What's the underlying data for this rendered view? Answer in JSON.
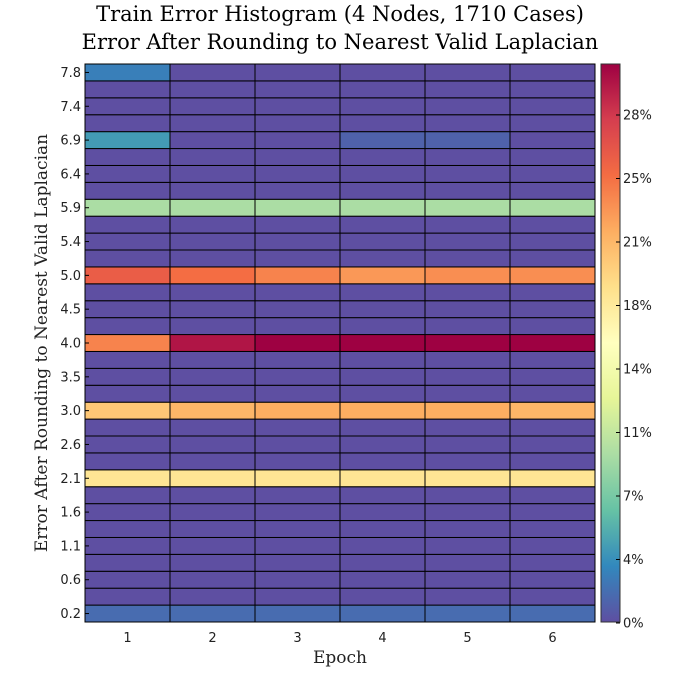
{
  "chart_data": {
    "type": "heatmap",
    "title": "Train Error Histogram (4 Nodes, 1710 Cases)",
    "subtitle": "Error After Rounding to Nearest Valid Laplacian",
    "xlabel": "Epoch",
    "ylabel": "Error After Rounding to Nearest Valid Laplacian",
    "x_categories": [
      "1",
      "2",
      "3",
      "4",
      "5",
      "6"
    ],
    "y_tick_labels": [
      "7.8",
      "7.4",
      "6.9",
      "6.4",
      "5.9",
      "5.4",
      "5.0",
      "4.5",
      "4.0",
      "3.5",
      "3.0",
      "2.6",
      "2.1",
      "1.6",
      "1.1",
      "0.6",
      "0.2"
    ],
    "colorbar_ticks": [
      "28%",
      "25%",
      "21%",
      "18%",
      "14%",
      "11%",
      "7%",
      "4%",
      "0%"
    ],
    "colorbar_range": [
      0,
      30
    ],
    "colormap": "spectral",
    "row_count": 33,
    "grid": true,
    "highlight_rows": [
      {
        "row": 0,
        "y": 0.2,
        "values": [
          1.5,
          1.5,
          1.5,
          1.5,
          1.5,
          1.5
        ]
      },
      {
        "row": 8,
        "y": 2.1,
        "values": [
          17.5,
          17.5,
          17.5,
          17.5,
          17.5,
          17.5
        ]
      },
      {
        "row": 12,
        "y": 3.0,
        "values": [
          19.5,
          20.5,
          21.0,
          21.0,
          21.0,
          20.5
        ]
      },
      {
        "row": 16,
        "y": 4.0,
        "values": [
          23.0,
          29.0,
          30.0,
          30.0,
          30.0,
          30.0
        ]
      },
      {
        "row": 20,
        "y": 5.0,
        "values": [
          25.0,
          24.0,
          23.0,
          22.0,
          22.5,
          22.5
        ]
      },
      {
        "row": 24,
        "y": 5.9,
        "values": [
          9.0,
          9.0,
          9.0,
          9.0,
          9.0,
          9.0
        ]
      },
      {
        "row": 28,
        "y": 6.9,
        "values": [
          4.0,
          0.0,
          0.0,
          1.0,
          1.0,
          0.0
        ]
      },
      {
        "row": 32,
        "y": 7.8,
        "values": [
          2.5,
          0.0,
          0.0,
          0.0,
          0.0,
          0.0
        ]
      }
    ]
  }
}
